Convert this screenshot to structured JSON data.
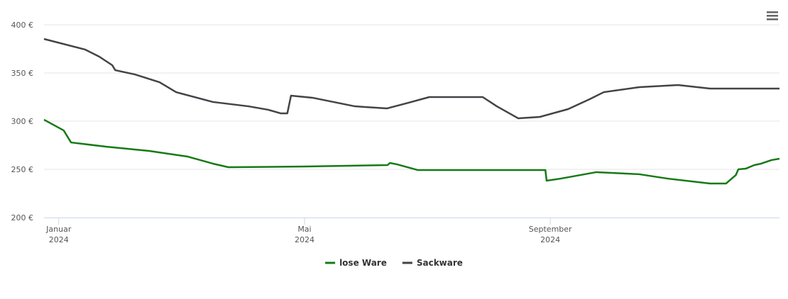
{
  "chart_data": {
    "type": "line",
    "xlim": [
      -0.24,
      11.73
    ],
    "xticks": [
      {
        "value": 0,
        "label": "Januar\n2024"
      },
      {
        "value": 4,
        "label": "Mai\n2024"
      },
      {
        "value": 8,
        "label": "September\n2024"
      }
    ],
    "ylim": [
      200,
      400
    ],
    "yticks": [
      {
        "value": 200,
        "label": "200 €"
      },
      {
        "value": 250,
        "label": "250 €"
      },
      {
        "value": 300,
        "label": "300 €"
      },
      {
        "value": 350,
        "label": "350 €"
      },
      {
        "value": 400,
        "label": "400 €"
      }
    ],
    "grid": true,
    "legend": "bottom",
    "series": [
      {
        "name": "lose Ware",
        "color": "#167a16",
        "x": [
          -0.24,
          0.08,
          0.2,
          0.77,
          1.47,
          2.1,
          2.51,
          2.76,
          4.01,
          5.35,
          5.39,
          5.51,
          5.84,
          7.92,
          7.94,
          8.17,
          8.75,
          9.45,
          9.91,
          10.6,
          10.86,
          11.02,
          11.06,
          11.18,
          11.32,
          11.43,
          11.6,
          11.73
        ],
        "values": [
          301.5,
          290.4,
          277.9,
          273.5,
          269.1,
          263.2,
          255.9,
          252.2,
          252.9,
          254.4,
          256.6,
          255.1,
          249.3,
          249.3,
          238.2,
          240.4,
          247.1,
          244.9,
          240.4,
          235.3,
          235.3,
          244.1,
          250,
          250.7,
          254.4,
          255.9,
          259.6,
          261
        ]
      },
      {
        "name": "Sackware",
        "color": "#434348",
        "x": [
          -0.24,
          0.43,
          0.66,
          0.87,
          0.92,
          1.24,
          1.64,
          1.91,
          2.51,
          3.09,
          3.41,
          3.61,
          3.72,
          3.78,
          4.13,
          4.82,
          5.34,
          5.69,
          6.03,
          6.9,
          7.13,
          7.48,
          7.83,
          8.29,
          8.64,
          8.87,
          9.45,
          10.08,
          10.6,
          11.73
        ],
        "values": [
          385.3,
          374.3,
          366.9,
          358.1,
          352.9,
          348.5,
          340.4,
          330.1,
          319.9,
          315.4,
          311.8,
          308.1,
          308.1,
          326.5,
          324.3,
          315.4,
          313.2,
          319.1,
          325,
          325,
          315.4,
          302.9,
          304.4,
          312.5,
          322.8,
          330.1,
          335.3,
          337.5,
          333.8,
          333.8
        ]
      }
    ]
  }
}
